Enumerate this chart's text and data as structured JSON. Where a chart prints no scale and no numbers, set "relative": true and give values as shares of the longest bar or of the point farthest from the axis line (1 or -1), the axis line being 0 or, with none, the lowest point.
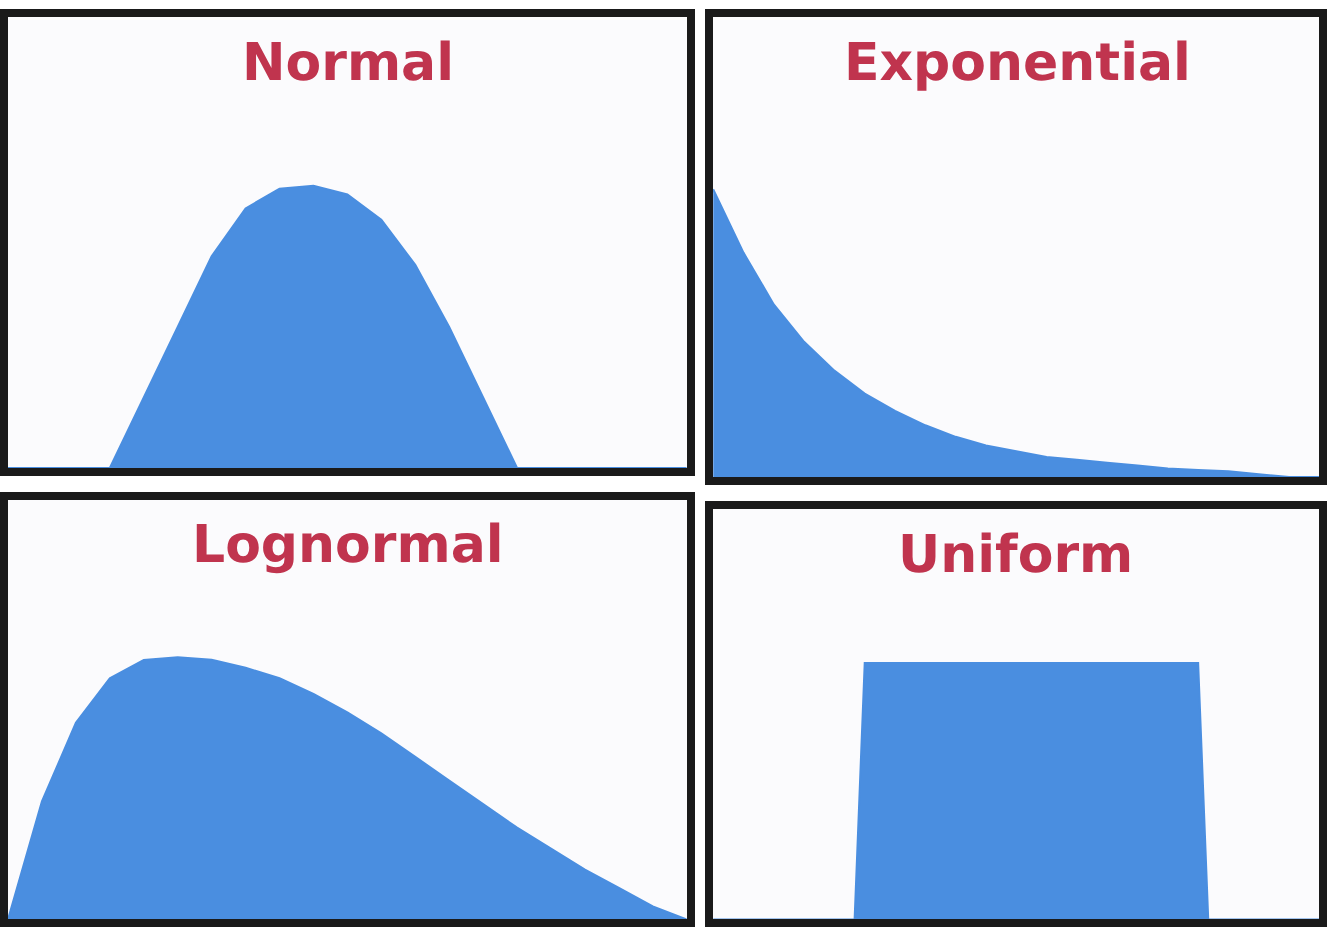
{
  "chart_data": [
    {
      "type": "area",
      "title": "Normal",
      "relative": true,
      "categories": [
        null,
        null,
        null,
        null,
        null,
        null,
        null,
        null,
        null,
        null,
        null,
        null,
        null,
        null,
        null,
        null,
        null,
        null,
        null,
        null,
        null
      ],
      "series": [
        {
          "color": "#4a8ee0",
          "values": [
            0,
            0,
            0,
            0,
            0.25,
            0.5,
            0.75,
            0.92,
            0.99,
            1,
            0.97,
            0.88,
            0.72,
            0.5,
            0.25,
            0,
            0,
            0,
            0,
            0,
            0
          ]
        }
      ]
    },
    {
      "type": "area",
      "title": "Exponential",
      "relative": true,
      "categories": [
        null,
        null,
        null,
        null,
        null,
        null,
        null,
        null,
        null,
        null,
        null,
        null,
        null,
        null,
        null,
        null,
        null,
        null,
        null,
        null,
        null
      ],
      "series": [
        {
          "color": "#4a8ee0",
          "values": [
            1,
            0.78,
            0.6,
            0.47,
            0.37,
            0.29,
            0.23,
            0.18,
            0.14,
            0.11,
            0.09,
            0.07,
            0.06,
            0.05,
            0.04,
            0.03,
            0.025,
            0.02,
            0.01,
            0,
            0
          ]
        }
      ]
    },
    {
      "type": "area",
      "title": "Lognormal",
      "relative": true,
      "categories": [
        null,
        null,
        null,
        null,
        null,
        null,
        null,
        null,
        null,
        null,
        null,
        null,
        null,
        null,
        null,
        null,
        null,
        null,
        null,
        null,
        null
      ],
      "series": [
        {
          "color": "#4a8ee0",
          "values": [
            0,
            0.45,
            0.75,
            0.92,
            0.99,
            1,
            0.99,
            0.96,
            0.92,
            0.86,
            0.79,
            0.71,
            0.62,
            0.53,
            0.44,
            0.35,
            0.27,
            0.19,
            0.12,
            0.05,
            0
          ]
        }
      ]
    },
    {
      "type": "area",
      "title": "Uniform",
      "relative": true,
      "categories": [
        null,
        null,
        null,
        null,
        null,
        null,
        null,
        null,
        null,
        null,
        null,
        null,
        null,
        null,
        null,
        null,
        null,
        null,
        null,
        null,
        null,
        null,
        null,
        null,
        null,
        null,
        null,
        null,
        null,
        null,
        null,
        null,
        null,
        null,
        null,
        null,
        null,
        null,
        null,
        null,
        null,
        null,
        null,
        null,
        null,
        null,
        null,
        null,
        null,
        null,
        null,
        null,
        null,
        null,
        null,
        null,
        null,
        null,
        null,
        null,
        null
      ],
      "series": [
        {
          "color": "#4a8ee0",
          "values": [
            0,
            0,
            0,
            0,
            0,
            0,
            0,
            0,
            0,
            0,
            0,
            0,
            0,
            0,
            0,
            1,
            1,
            1,
            1,
            1,
            1,
            1,
            1,
            1,
            1,
            1,
            1,
            1,
            1,
            1,
            1,
            1,
            1,
            1,
            1,
            1,
            1,
            1,
            1,
            1,
            1,
            1,
            1,
            1,
            1,
            1,
            1,
            1,
            1,
            0,
            0,
            0,
            0,
            0,
            0,
            0,
            0,
            0,
            0,
            0,
            0
          ]
        }
      ]
    }
  ]
}
